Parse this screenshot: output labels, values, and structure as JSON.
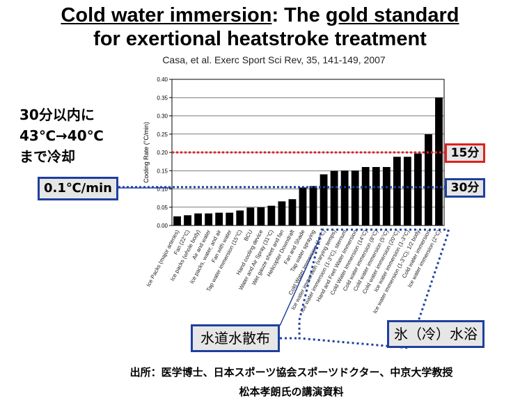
{
  "header": {
    "title_line1_part1": "Cold water immersion",
    "title_line1_part2": ": The ",
    "title_line1_part3": "gold standard",
    "title_line2": "for exertional heatstroke treatment",
    "citation": "Casa, et al. Exerc Sport Sci Rev, 35, 141-149, 2007"
  },
  "annotations": {
    "note_line1": "30分以内に",
    "note_line2": "43℃→40℃",
    "note_line3": "まで冷却",
    "box_0_1": "0.1℃/min",
    "box_15": "15分",
    "box_30": "30分",
    "box_tap_water": "水道水散布",
    "box_ice_water": "氷（冷）水浴"
  },
  "source": {
    "line1": "出所：医学博士、日本スポーツ協会スポーツドクター、中京大学教授",
    "line2": "松本孝朗氏の講演資料"
  },
  "colors": {
    "bar": "#000000",
    "ref_red": "#e02020",
    "ref_blue": "#1f3f9f"
  },
  "chart_data": {
    "type": "bar",
    "ylabel": "Cooling Rate (°C/min)",
    "ylim": [
      0,
      0.4
    ],
    "yticks": [
      "0.00",
      "0.05",
      "0.10",
      "0.15",
      "0.20",
      "0.25",
      "0.30",
      "0.35",
      "0.40"
    ],
    "grid": true,
    "categories": [
      "Ice Packs (major arteries)",
      "Fan (22°C)",
      "Ice packs (whole body)",
      "Air and water",
      "Ice packs, water, and air",
      "Fan with water",
      "Tap water immersion (15°C)",
      "BCU",
      "Hand cooling device",
      "Water and Air Spray (31°C)",
      "Wet gauze sheet and fan",
      "Helicopter Downdraft",
      "Fan and Shade",
      "Tap water spraying",
      "Cold Water Immersion (14°C)",
      "Ice water immersion (varying temps)",
      "Ice water immersion (1-3°C), sternum",
      "Hand and Feet Water Immersion",
      "Cold Water Immersion (14°C)",
      "Cold water immersion (8°C)",
      "Cold water immersion (5°C)",
      "Cold water immersion (20°C)",
      "Ice water immersion (1-3°C)",
      "Ice water immersion (1-3°C); 1/2 body",
      "Cold water immersion",
      "Ice water immersion (2°C)"
    ],
    "values": [
      0.025,
      0.028,
      0.033,
      0.033,
      0.035,
      0.035,
      0.041,
      0.049,
      0.05,
      0.054,
      0.066,
      0.072,
      0.104,
      0.108,
      0.14,
      0.149,
      0.15,
      0.15,
      0.16,
      0.16,
      0.16,
      0.188,
      0.188,
      0.197,
      0.25,
      0.35
    ],
    "reference_lines": [
      {
        "value": 0.2,
        "label": "15分",
        "color": "#e02020"
      },
      {
        "value": 0.105,
        "label": "30分",
        "color": "#1f3f9f"
      }
    ]
  }
}
